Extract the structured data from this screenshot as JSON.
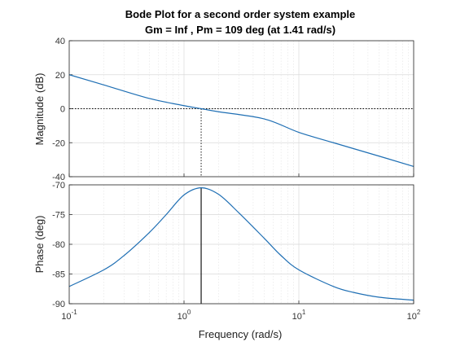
{
  "chart_data": {
    "type": "line",
    "title": "Bode Plot for a second order system example",
    "subtitle": "Gm = Inf ,  Pm = 109 deg (at 1.41 rad/s)",
    "xlabel": "Frequency  (rad/s)",
    "xscale": "log",
    "xlim": [
      0.1,
      100
    ],
    "x_ticks": [
      {
        "base": "10",
        "exp": "-1",
        "value": 0.1
      },
      {
        "base": "10",
        "exp": "0",
        "value": 1
      },
      {
        "base": "10",
        "exp": "1",
        "value": 10
      },
      {
        "base": "10",
        "exp": "2",
        "value": 100
      }
    ],
    "grid": true,
    "crossover_frequency": 1.41,
    "magnitude": {
      "ylabel": "Magnitude (dB)",
      "ylim": [
        -40,
        40
      ],
      "y_ticks": [
        "40",
        "20",
        "0",
        "-20",
        "-40"
      ],
      "reference_line": 0,
      "x": [
        0.1,
        0.2,
        0.5,
        1,
        1.414,
        2,
        5,
        10,
        20,
        50,
        100
      ],
      "y": [
        20.0,
        14.0,
        6.0,
        1.8,
        0.0,
        -1.8,
        -6.0,
        -13.9,
        -20.0,
        -27.9,
        -34.0
      ]
    },
    "phase": {
      "ylabel": "Phase (deg)",
      "ylim": [
        -90,
        -70
      ],
      "y_ticks": [
        "-70",
        "-75",
        "-80",
        "-85",
        "-90"
      ],
      "x": [
        0.1,
        0.2,
        0.3,
        0.5,
        0.7,
        1,
        1.414,
        2,
        3,
        5,
        7,
        10,
        20,
        30,
        50,
        100
      ],
      "y": [
        -87.1,
        -84.3,
        -81.9,
        -78.0,
        -75.0,
        -71.7,
        -70.5,
        -71.6,
        -74.7,
        -79.0,
        -81.9,
        -84.3,
        -87.1,
        -88.1,
        -88.9,
        -89.4
      ]
    },
    "line_color": "#1f6fb4"
  }
}
